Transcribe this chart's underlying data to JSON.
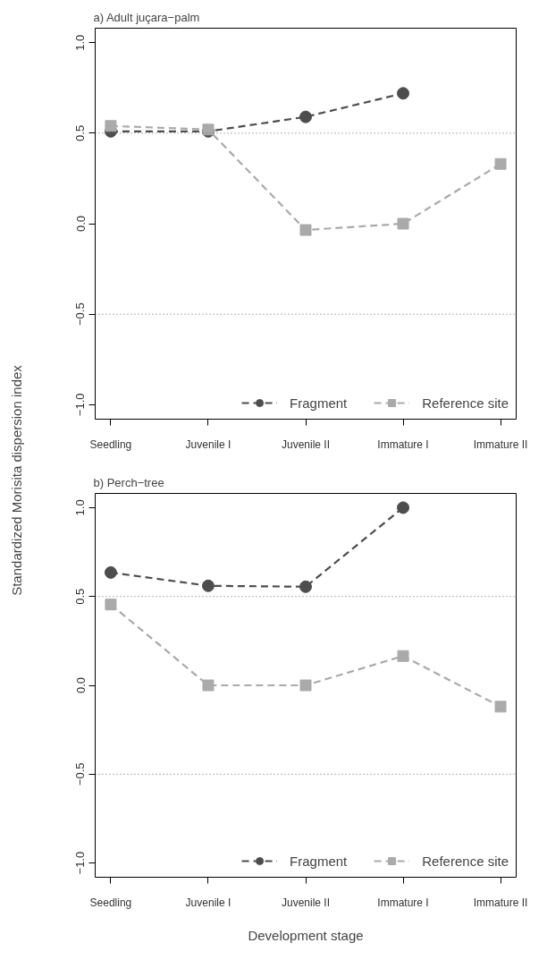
{
  "chart_data": [
    {
      "type": "line",
      "title": "a) Adult juçara−palm",
      "ylabel": "Standardized Morisita dispersion index",
      "categories": [
        "Seedling",
        "Juvenile I",
        "Juvenile II",
        "Immature I",
        "Immature II"
      ],
      "series": [
        {
          "name": "Fragment",
          "color": "#4d4d4d",
          "marker": "circle",
          "values": [
            0.51,
            0.51,
            0.59,
            0.72,
            null
          ]
        },
        {
          "name": "Reference site",
          "color": "#aaaaaa",
          "marker": "square",
          "values": [
            0.54,
            0.52,
            -0.035,
            0.0,
            0.33
          ]
        }
      ],
      "ylim": [
        -1.08,
        1.08
      ],
      "yticks": [
        {
          "value": -1,
          "label": "−1.0"
        },
        {
          "value": -0.5,
          "label": "−0.5"
        },
        {
          "value": 0,
          "label": "0.0"
        },
        {
          "value": 0.5,
          "label": "0.5"
        },
        {
          "value": 1,
          "label": "1.0"
        }
      ],
      "ref_lines": [
        {
          "axis": "y",
          "value": 0.5,
          "color": "#666666",
          "line_style": "dotted"
        },
        {
          "axis": "y",
          "value": -0.5,
          "color": "#666666",
          "line_style": "dotted"
        }
      ],
      "line_style": "dashed",
      "grid": false,
      "legend": "bottom right"
    },
    {
      "type": "line",
      "title": "b) Perch−tree",
      "xlabel": "Development stage",
      "categories": [
        "Seedling",
        "Juvenile I",
        "Juvenile II",
        "Immature I",
        "Immature II"
      ],
      "series": [
        {
          "name": "Fragment",
          "color": "#4d4d4d",
          "marker": "circle",
          "values": [
            0.635,
            0.56,
            0.555,
            1.0,
            null
          ]
        },
        {
          "name": "Reference site",
          "color": "#aaaaaa",
          "marker": "square",
          "values": [
            0.455,
            0.0,
            0.0,
            0.165,
            -0.12
          ]
        }
      ],
      "ylim": [
        -1.08,
        1.08
      ],
      "yticks": [
        {
          "value": -1,
          "label": "−1.0"
        },
        {
          "value": -0.5,
          "label": "−0.5"
        },
        {
          "value": 0,
          "label": "0.0"
        },
        {
          "value": 0.5,
          "label": "0.5"
        },
        {
          "value": 1,
          "label": "1.0"
        }
      ],
      "ref_lines": [
        {
          "axis": "y",
          "value": 0.5,
          "color": "#666666",
          "line_style": "dotted"
        },
        {
          "axis": "y",
          "value": -0.5,
          "color": "#666666",
          "line_style": "dotted"
        }
      ],
      "line_style": "dashed",
      "grid": false,
      "legend": "bottom right"
    }
  ]
}
